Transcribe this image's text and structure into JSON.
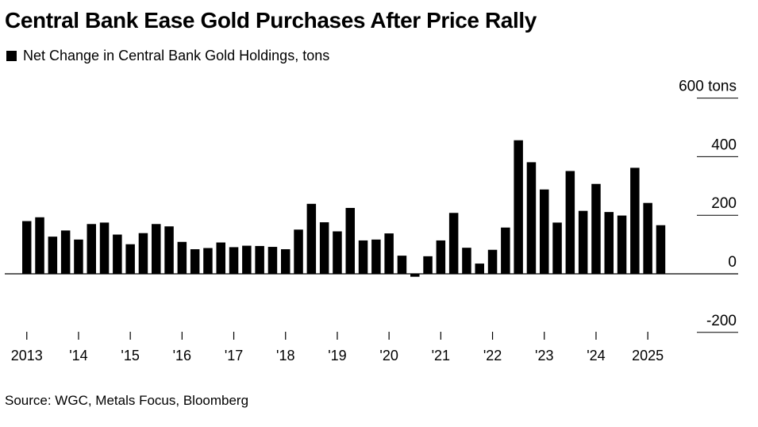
{
  "title": "Central Bank Ease Gold Purchases After Price Rally",
  "source": "Source: WGC, Metals Focus, Bloomberg",
  "chart_data": {
    "type": "bar",
    "title": "Central Bank Ease Gold Purchases After Price Rally",
    "series": [
      {
        "name": "Net Change in Central Bank Gold Holdings, tons",
        "color": "#000000",
        "values": [
          180,
          193,
          127,
          148,
          117,
          170,
          175,
          134,
          101,
          139,
          170,
          162,
          109,
          84,
          88,
          107,
          91,
          96,
          95,
          92,
          84,
          151,
          239,
          176,
          145,
          225,
          114,
          117,
          138,
          62,
          -10,
          60,
          114,
          208,
          89,
          35,
          82,
          158,
          456,
          381,
          288,
          175,
          351,
          215,
          307,
          211,
          199,
          362,
          242,
          166
        ]
      }
    ],
    "x_tick_labels": [
      "2013",
      "'14",
      "'15",
      "'16",
      "'17",
      "'18",
      "'19",
      "'20",
      "'21",
      "'22",
      "'23",
      "'24",
      "2025"
    ],
    "y_tick_labels": [
      "600 tons",
      "400",
      "200",
      "0",
      "-200"
    ],
    "y_ticks": [
      600,
      400,
      200,
      0,
      -200
    ],
    "ylim": [
      -200,
      600
    ],
    "grid": false,
    "legend": "top-left"
  }
}
